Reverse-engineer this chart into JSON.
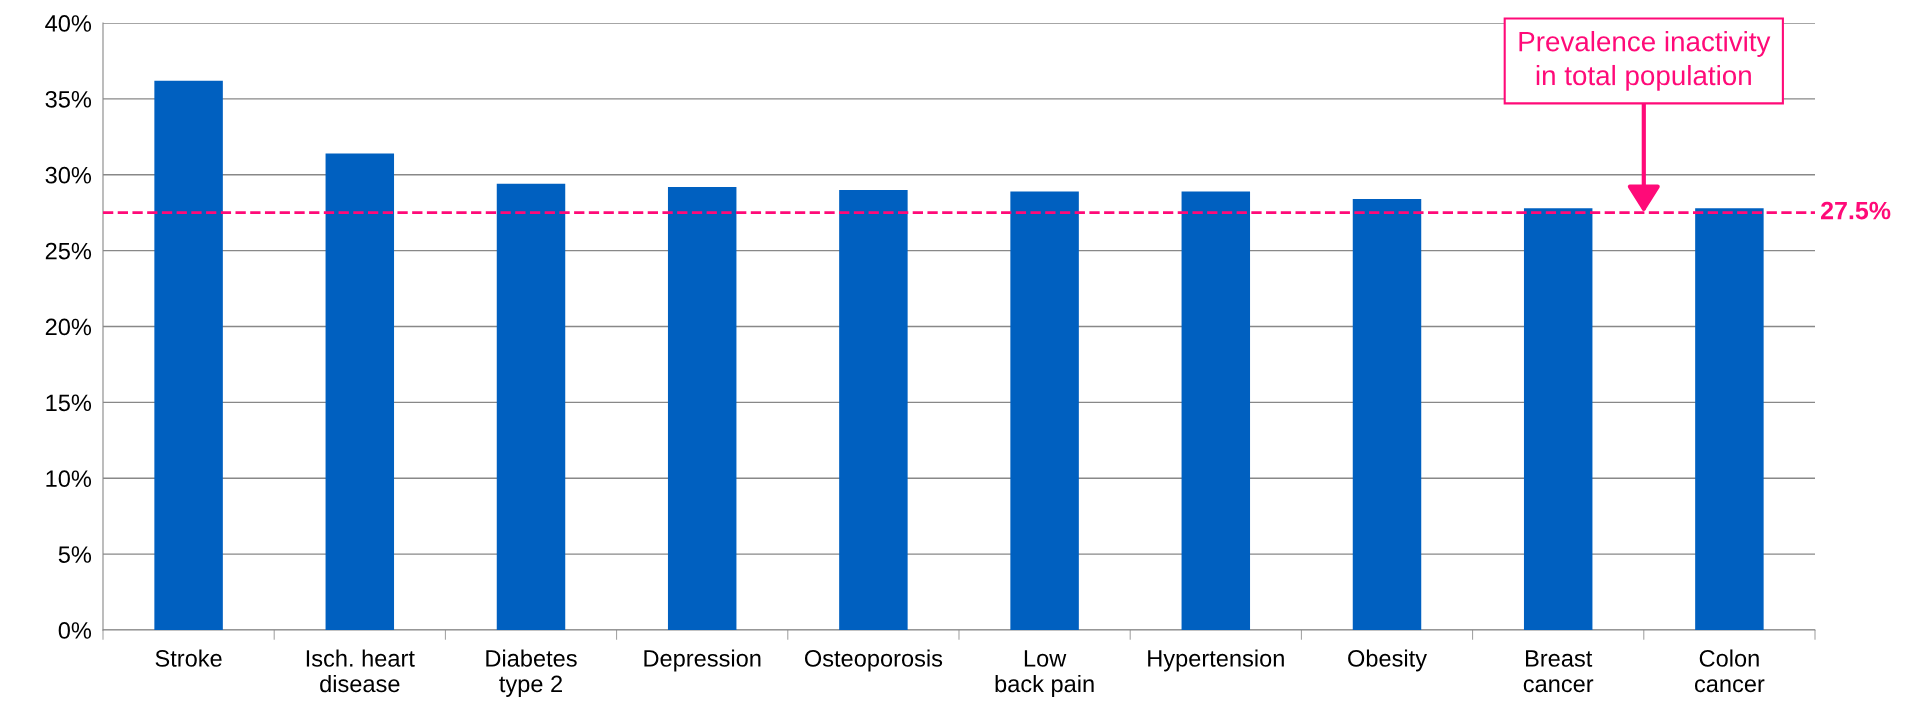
{
  "chart_data": {
    "type": "bar",
    "categories": [
      "Stroke",
      "Isch. heart\ndisease",
      "Diabetes\ntype 2",
      "Depression",
      "Osteoporosis",
      "Low\nback pain",
      "Hypertension",
      "Obesity",
      "Breast\ncancer",
      "Colon\ncancer"
    ],
    "values": [
      36.2,
      31.4,
      29.4,
      29.2,
      29.0,
      28.9,
      28.9,
      28.4,
      27.8,
      27.8
    ],
    "color": "#0060c0",
    "ylim": [
      0,
      40
    ],
    "yticks": [
      {
        "value": 0,
        "label": "0%"
      },
      {
        "value": 5,
        "label": "5%"
      },
      {
        "value": 10,
        "label": "10%"
      },
      {
        "value": 15,
        "label": "15%"
      },
      {
        "value": 20,
        "label": "20%"
      },
      {
        "value": 25,
        "label": "25%"
      },
      {
        "value": 30,
        "label": "30%"
      },
      {
        "value": 35,
        "label": "35%"
      },
      {
        "value": 40,
        "label": "40%"
      }
    ],
    "grid": "y",
    "ref_lines": [
      {
        "axis": "y",
        "value": 27.5,
        "label": "27.5%",
        "color": "#ff0a78",
        "line_style": "dashed"
      }
    ],
    "annotations": [
      {
        "text": "Prevalence inactivity\nin total population",
        "y": 27.5
      }
    ]
  }
}
